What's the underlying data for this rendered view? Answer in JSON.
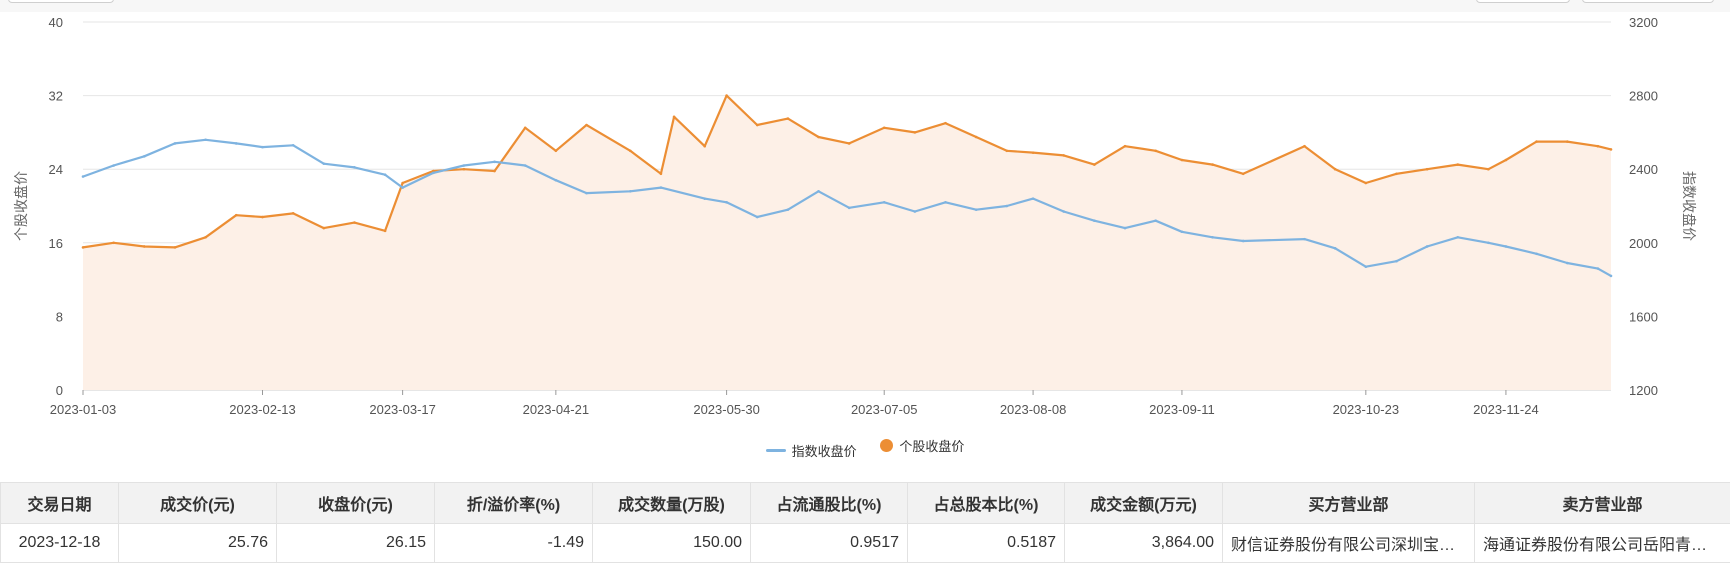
{
  "colors": {
    "index": "#7eb3e0",
    "stock": "#ec8e34",
    "stock_fill": "#fdf0e7",
    "grid": "#e6e6e6",
    "axis": "#cccccc"
  },
  "legend": {
    "index_label": "指数收盘价",
    "stock_label": "个股收盘价"
  },
  "chart_data": {
    "type": "line",
    "ylabel_left": "个股收盘价",
    "ylabel_right": "指数收盘价",
    "ylim_left": [
      0,
      40
    ],
    "ylim_right": [
      1200,
      3200
    ],
    "yticks_left": [
      "0",
      "8",
      "16",
      "24",
      "32",
      "40"
    ],
    "yticks_right": [
      "1200",
      "1600",
      "2000",
      "2400",
      "2800",
      "3200"
    ],
    "xticks": [
      "2023-01-03",
      "2023-02-13",
      "2023-03-17",
      "2023-04-21",
      "2023-05-30",
      "2023-07-05",
      "2023-08-08",
      "2023-09-11",
      "2023-10-23",
      "2023-11-24"
    ],
    "grid": true,
    "legend_position": "bottom",
    "series": [
      {
        "name": "个股收盘价",
        "axis": "left",
        "area": true,
        "points": [
          [
            "2023-01-03",
            15.5
          ],
          [
            "2023-01-10",
            16.0
          ],
          [
            "2023-01-17",
            15.6
          ],
          [
            "2023-01-24",
            15.5
          ],
          [
            "2023-01-31",
            16.6
          ],
          [
            "2023-02-07",
            19.0
          ],
          [
            "2023-02-13",
            18.8
          ],
          [
            "2023-02-20",
            19.2
          ],
          [
            "2023-02-27",
            17.6
          ],
          [
            "2023-03-06",
            18.2
          ],
          [
            "2023-03-13",
            17.3
          ],
          [
            "2023-03-17",
            22.5
          ],
          [
            "2023-03-24",
            23.8
          ],
          [
            "2023-03-31",
            24.0
          ],
          [
            "2023-04-07",
            23.8
          ],
          [
            "2023-04-14",
            28.5
          ],
          [
            "2023-04-21",
            26.0
          ],
          [
            "2023-04-28",
            28.8
          ],
          [
            "2023-05-08",
            26.0
          ],
          [
            "2023-05-15",
            23.5
          ],
          [
            "2023-05-18",
            29.7
          ],
          [
            "2023-05-25",
            26.5
          ],
          [
            "2023-05-30",
            32.0
          ],
          [
            "2023-06-06",
            28.8
          ],
          [
            "2023-06-13",
            29.5
          ],
          [
            "2023-06-20",
            27.5
          ],
          [
            "2023-06-27",
            26.8
          ],
          [
            "2023-07-05",
            28.5
          ],
          [
            "2023-07-12",
            28.0
          ],
          [
            "2023-07-19",
            29.0
          ],
          [
            "2023-07-26",
            27.5
          ],
          [
            "2023-08-02",
            26.0
          ],
          [
            "2023-08-08",
            25.8
          ],
          [
            "2023-08-15",
            25.5
          ],
          [
            "2023-08-22",
            24.5
          ],
          [
            "2023-08-29",
            26.5
          ],
          [
            "2023-09-05",
            26.0
          ],
          [
            "2023-09-11",
            25.0
          ],
          [
            "2023-09-18",
            24.5
          ],
          [
            "2023-09-25",
            23.5
          ],
          [
            "2023-10-09",
            26.5
          ],
          [
            "2023-10-16",
            24.0
          ],
          [
            "2023-10-23",
            22.5
          ],
          [
            "2023-10-30",
            23.5
          ],
          [
            "2023-11-06",
            24.0
          ],
          [
            "2023-11-13",
            24.5
          ],
          [
            "2023-11-20",
            24.0
          ],
          [
            "2023-11-24",
            25.0
          ],
          [
            "2023-12-01",
            27.0
          ],
          [
            "2023-12-08",
            27.0
          ],
          [
            "2023-12-15",
            26.5
          ],
          [
            "2023-12-18",
            26.15
          ]
        ]
      },
      {
        "name": "指数收盘价",
        "axis": "right",
        "area": false,
        "points": [
          [
            "2023-01-03",
            2360
          ],
          [
            "2023-01-10",
            2420
          ],
          [
            "2023-01-17",
            2470
          ],
          [
            "2023-01-24",
            2540
          ],
          [
            "2023-01-31",
            2560
          ],
          [
            "2023-02-07",
            2540
          ],
          [
            "2023-02-13",
            2520
          ],
          [
            "2023-02-20",
            2530
          ],
          [
            "2023-02-27",
            2430
          ],
          [
            "2023-03-06",
            2410
          ],
          [
            "2023-03-13",
            2370
          ],
          [
            "2023-03-17",
            2300
          ],
          [
            "2023-03-24",
            2380
          ],
          [
            "2023-03-31",
            2420
          ],
          [
            "2023-04-07",
            2440
          ],
          [
            "2023-04-14",
            2420
          ],
          [
            "2023-04-21",
            2340
          ],
          [
            "2023-04-28",
            2270
          ],
          [
            "2023-05-08",
            2280
          ],
          [
            "2023-05-15",
            2300
          ],
          [
            "2023-05-25",
            2240
          ],
          [
            "2023-05-30",
            2220
          ],
          [
            "2023-06-06",
            2140
          ],
          [
            "2023-06-13",
            2180
          ],
          [
            "2023-06-20",
            2280
          ],
          [
            "2023-06-27",
            2190
          ],
          [
            "2023-07-05",
            2220
          ],
          [
            "2023-07-12",
            2170
          ],
          [
            "2023-07-19",
            2220
          ],
          [
            "2023-07-26",
            2180
          ],
          [
            "2023-08-02",
            2200
          ],
          [
            "2023-08-08",
            2240
          ],
          [
            "2023-08-15",
            2170
          ],
          [
            "2023-08-22",
            2120
          ],
          [
            "2023-08-29",
            2080
          ],
          [
            "2023-09-05",
            2120
          ],
          [
            "2023-09-11",
            2060
          ],
          [
            "2023-09-18",
            2030
          ],
          [
            "2023-09-25",
            2010
          ],
          [
            "2023-10-09",
            2020
          ],
          [
            "2023-10-16",
            1970
          ],
          [
            "2023-10-23",
            1870
          ],
          [
            "2023-10-30",
            1900
          ],
          [
            "2023-11-06",
            1980
          ],
          [
            "2023-11-13",
            2030
          ],
          [
            "2023-11-20",
            2000
          ],
          [
            "2023-11-24",
            1980
          ],
          [
            "2023-12-01",
            1940
          ],
          [
            "2023-12-08",
            1890
          ],
          [
            "2023-12-15",
            1860
          ],
          [
            "2023-12-18",
            1820
          ]
        ]
      }
    ]
  },
  "table": {
    "headers": [
      "交易日期",
      "成交价(元)",
      "收盘价(元)",
      "折/溢价率(%)",
      "成交数量(万股)",
      "占流通股比(%)",
      "占总股本比(%)",
      "成交金额(万元)",
      "买方营业部",
      "卖方营业部"
    ],
    "rows": [
      [
        "2023-12-18",
        "25.76",
        "26.15",
        "-1.49",
        "150.00",
        "0.9517",
        "0.5187",
        "3,864.00",
        "财信证券股份有限公司深圳宝…",
        "海通证券股份有限公司岳阳青…"
      ]
    ]
  }
}
